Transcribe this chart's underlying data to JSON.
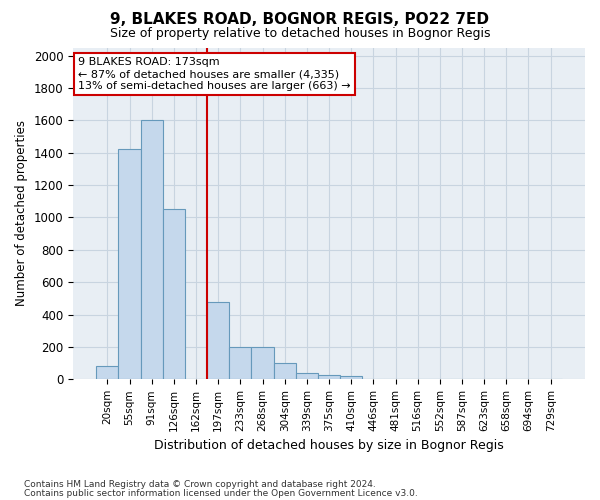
{
  "title": "9, BLAKES ROAD, BOGNOR REGIS, PO22 7ED",
  "subtitle": "Size of property relative to detached houses in Bognor Regis",
  "xlabel": "Distribution of detached houses by size in Bognor Regis",
  "ylabel": "Number of detached properties",
  "categories": [
    "20sqm",
    "55sqm",
    "91sqm",
    "126sqm",
    "162sqm",
    "197sqm",
    "233sqm",
    "268sqm",
    "304sqm",
    "339sqm",
    "375sqm",
    "410sqm",
    "446sqm",
    "481sqm",
    "516sqm",
    "552sqm",
    "587sqm",
    "623sqm",
    "658sqm",
    "694sqm",
    "729sqm"
  ],
  "values": [
    80,
    1420,
    1600,
    1050,
    0,
    480,
    200,
    200,
    100,
    40,
    25,
    20,
    0,
    0,
    0,
    0,
    0,
    0,
    0,
    0,
    0
  ],
  "bar_color": "#c5d8ec",
  "bar_edge_color": "#6699bb",
  "vline_color": "#cc0000",
  "annotation_line1": "9 BLAKES ROAD: 173sqm",
  "annotation_line2": "← 87% of detached houses are smaller (4,335)",
  "annotation_line3": "13% of semi-detached houses are larger (663) →",
  "annotation_box_color": "#ffffff",
  "annotation_box_edge": "#cc0000",
  "ylim": [
    0,
    2050
  ],
  "yticks": [
    0,
    200,
    400,
    600,
    800,
    1000,
    1200,
    1400,
    1600,
    1800,
    2000
  ],
  "grid_color": "#c8d4e0",
  "bg_color": "#e8eef4",
  "footnote1": "Contains HM Land Registry data © Crown copyright and database right 2024.",
  "footnote2": "Contains public sector information licensed under the Open Government Licence v3.0."
}
